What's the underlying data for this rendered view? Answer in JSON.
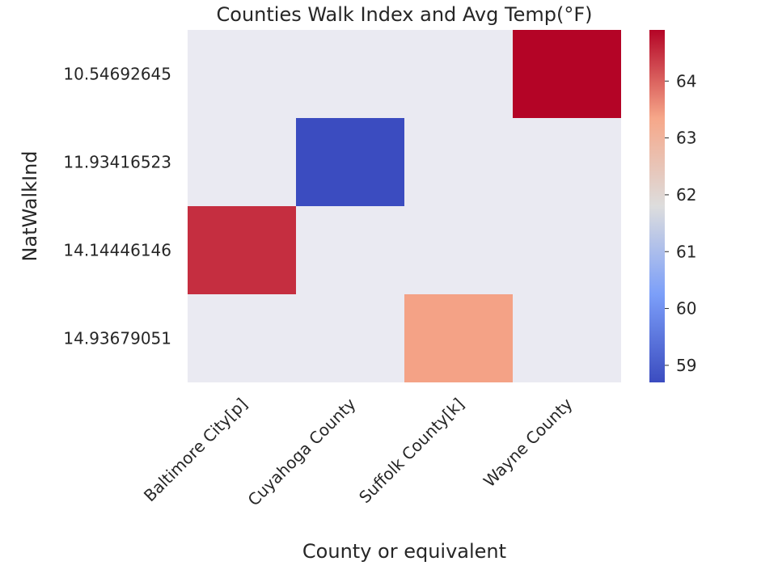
{
  "chart_data": {
    "type": "heatmap",
    "title": "Counties Walk Index and Avg Temp(°F)",
    "xlabel": "County or equivalent",
    "ylabel": "NatWalkInd",
    "x_categories": [
      "Baltimore City[p]",
      "Cuyahoga County",
      "Suffolk County[k]",
      "Wayne County"
    ],
    "y_categories": [
      "10.54692645",
      "11.93416523",
      "14.14446146",
      "14.93679051"
    ],
    "cells": [
      {
        "x": "Wayne County",
        "y": "10.54692645",
        "value": 64.9
      },
      {
        "x": "Cuyahoga County",
        "y": "11.93416523",
        "value": 58.7
      },
      {
        "x": "Baltimore City[p]",
        "y": "14.14446146",
        "value": 64.5
      },
      {
        "x": "Suffolk County[k]",
        "y": "14.93679051",
        "value": 63.4
      }
    ],
    "missing_color": "#eaeaf2",
    "colormap": "coolwarm",
    "colorbar": {
      "range": [
        58.7,
        64.9
      ],
      "ticks": [
        59,
        60,
        61,
        62,
        63,
        64
      ]
    }
  }
}
